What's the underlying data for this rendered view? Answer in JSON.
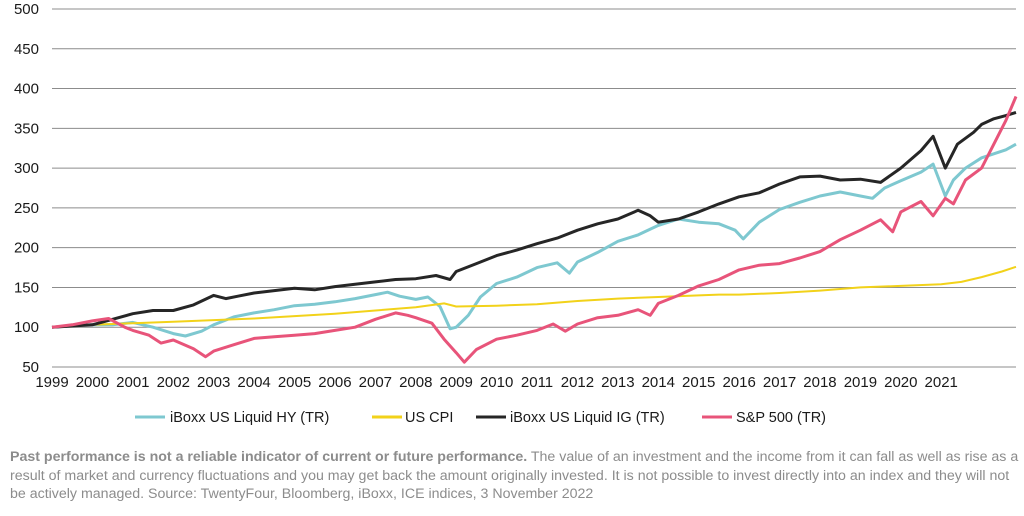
{
  "chart_data": {
    "type": "line",
    "xlim": [
      1999,
      2022.85
    ],
    "ylim": [
      50,
      500
    ],
    "yticks": [
      50,
      100,
      150,
      200,
      250,
      300,
      350,
      400,
      450,
      500
    ],
    "xticks": [
      "1999",
      "2000",
      "2001",
      "2002",
      "2003",
      "2004",
      "2005",
      "2006",
      "2007",
      "2008",
      "2009",
      "2010",
      "2011",
      "2012",
      "2013",
      "2014",
      "2015",
      "2016",
      "2017",
      "2018",
      "2019",
      "2020",
      "2021"
    ],
    "grid": "horizontal",
    "legend_position": "bottom",
    "colors": {
      "hy": "#7ec8d0",
      "cpi": "#f2d21a",
      "ig": "#262626",
      "sp": "#e8547a",
      "grid": "#8c8c8c"
    },
    "series": [
      {
        "name": "iBoxx US Liquid HY (TR)",
        "key": "hy",
        "points": [
          [
            1999,
            100
          ],
          [
            1999.5,
            102
          ],
          [
            2000,
            103
          ],
          [
            2000.5,
            103
          ],
          [
            2001,
            106
          ],
          [
            2001.5,
            100
          ],
          [
            2002,
            92
          ],
          [
            2002.3,
            89
          ],
          [
            2002.7,
            95
          ],
          [
            2003,
            103
          ],
          [
            2003.5,
            113
          ],
          [
            2004,
            118
          ],
          [
            2004.5,
            122
          ],
          [
            2005,
            127
          ],
          [
            2005.5,
            129
          ],
          [
            2006,
            132
          ],
          [
            2006.5,
            136
          ],
          [
            2007,
            141
          ],
          [
            2007.3,
            144
          ],
          [
            2007.6,
            139
          ],
          [
            2008,
            135
          ],
          [
            2008.3,
            138
          ],
          [
            2008.6,
            126
          ],
          [
            2008.85,
            98
          ],
          [
            2009,
            100
          ],
          [
            2009.3,
            115
          ],
          [
            2009.6,
            138
          ],
          [
            2010,
            155
          ],
          [
            2010.5,
            163
          ],
          [
            2011,
            175
          ],
          [
            2011.5,
            181
          ],
          [
            2011.8,
            168
          ],
          [
            2012,
            182
          ],
          [
            2012.5,
            194
          ],
          [
            2013,
            208
          ],
          [
            2013.5,
            216
          ],
          [
            2014,
            228
          ],
          [
            2014.5,
            236
          ],
          [
            2015,
            232
          ],
          [
            2015.5,
            230
          ],
          [
            2015.9,
            222
          ],
          [
            2016.1,
            211
          ],
          [
            2016.5,
            232
          ],
          [
            2017,
            248
          ],
          [
            2017.5,
            257
          ],
          [
            2018,
            265
          ],
          [
            2018.5,
            270
          ],
          [
            2019,
            265
          ],
          [
            2019.3,
            262
          ],
          [
            2019.6,
            275
          ],
          [
            2020,
            284
          ],
          [
            2020.5,
            295
          ],
          [
            2020.8,
            305
          ],
          [
            2021.1,
            265
          ],
          [
            2021.3,
            285
          ],
          [
            2021.6,
            300
          ],
          [
            2022,
            313
          ],
          [
            2022.3,
            318
          ],
          [
            2022.6,
            323
          ],
          [
            2022.85,
            330
          ]
        ]
      },
      {
        "name": "US CPI",
        "key": "cpi",
        "points": [
          [
            1999,
            100
          ],
          [
            2000,
            103
          ],
          [
            2001,
            105
          ],
          [
            2002,
            107
          ],
          [
            2003,
            109
          ],
          [
            2004,
            111
          ],
          [
            2005,
            114
          ],
          [
            2006,
            117
          ],
          [
            2007,
            121
          ],
          [
            2008,
            125
          ],
          [
            2008.7,
            130
          ],
          [
            2009,
            126
          ],
          [
            2010,
            127
          ],
          [
            2011,
            129
          ],
          [
            2012,
            133
          ],
          [
            2013,
            136
          ],
          [
            2014,
            138
          ],
          [
            2015,
            140
          ],
          [
            2015.5,
            141
          ],
          [
            2016,
            141
          ],
          [
            2017,
            143
          ],
          [
            2018,
            146
          ],
          [
            2019,
            150
          ],
          [
            2020,
            152
          ],
          [
            2021,
            154
          ],
          [
            2021.5,
            157
          ],
          [
            2022,
            163
          ],
          [
            2022.5,
            170
          ],
          [
            2022.85,
            176
          ]
        ]
      },
      {
        "name": "iBoxx US Liquid IG (TR)",
        "key": "ig",
        "points": [
          [
            1999,
            100
          ],
          [
            2000,
            103
          ],
          [
            2000.5,
            110
          ],
          [
            2001,
            117
          ],
          [
            2001.5,
            121
          ],
          [
            2002,
            121
          ],
          [
            2002.5,
            128
          ],
          [
            2003,
            140
          ],
          [
            2003.3,
            136
          ],
          [
            2003.6,
            139
          ],
          [
            2004,
            143
          ],
          [
            2004.5,
            146
          ],
          [
            2005,
            149
          ],
          [
            2005.5,
            147
          ],
          [
            2006,
            151
          ],
          [
            2006.5,
            154
          ],
          [
            2007,
            157
          ],
          [
            2007.5,
            160
          ],
          [
            2008,
            161
          ],
          [
            2008.5,
            165
          ],
          [
            2008.85,
            160
          ],
          [
            2009,
            170
          ],
          [
            2009.5,
            180
          ],
          [
            2010,
            190
          ],
          [
            2010.5,
            197
          ],
          [
            2011,
            205
          ],
          [
            2011.5,
            212
          ],
          [
            2012,
            222
          ],
          [
            2012.5,
            230
          ],
          [
            2013,
            236
          ],
          [
            2013.5,
            247
          ],
          [
            2013.8,
            240
          ],
          [
            2014,
            232
          ],
          [
            2014.5,
            236
          ],
          [
            2015,
            245
          ],
          [
            2015.5,
            255
          ],
          [
            2016,
            264
          ],
          [
            2016.5,
            269
          ],
          [
            2017,
            280
          ],
          [
            2017.5,
            289
          ],
          [
            2018,
            290
          ],
          [
            2018.5,
            285
          ],
          [
            2019,
            286
          ],
          [
            2019.5,
            282
          ],
          [
            2020,
            300
          ],
          [
            2020.5,
            322
          ],
          [
            2020.8,
            340
          ],
          [
            2021.1,
            300
          ],
          [
            2021.4,
            330
          ],
          [
            2021.8,
            345
          ],
          [
            2022,
            355
          ],
          [
            2022.3,
            362
          ],
          [
            2022.6,
            366
          ],
          [
            2022.85,
            370
          ]
        ]
      },
      {
        "name": "S&P 500 (TR)",
        "key": "sp",
        "points": [
          [
            1999,
            100
          ],
          [
            1999.5,
            103
          ],
          [
            2000,
            108
          ],
          [
            2000.4,
            111
          ],
          [
            2000.8,
            100
          ],
          [
            2001,
            96
          ],
          [
            2001.4,
            90
          ],
          [
            2001.7,
            80
          ],
          [
            2002,
            84
          ],
          [
            2002.5,
            73
          ],
          [
            2002.8,
            63
          ],
          [
            2003,
            70
          ],
          [
            2003.5,
            78
          ],
          [
            2004,
            86
          ],
          [
            2004.5,
            88
          ],
          [
            2005,
            90
          ],
          [
            2005.5,
            92
          ],
          [
            2006,
            96
          ],
          [
            2006.5,
            100
          ],
          [
            2007,
            110
          ],
          [
            2007.5,
            118
          ],
          [
            2007.8,
            115
          ],
          [
            2008,
            112
          ],
          [
            2008.4,
            105
          ],
          [
            2008.7,
            85
          ],
          [
            2009,
            68
          ],
          [
            2009.2,
            56
          ],
          [
            2009.5,
            72
          ],
          [
            2010,
            85
          ],
          [
            2010.5,
            90
          ],
          [
            2011,
            96
          ],
          [
            2011.4,
            104
          ],
          [
            2011.7,
            95
          ],
          [
            2012,
            104
          ],
          [
            2012.5,
            112
          ],
          [
            2013,
            115
          ],
          [
            2013.5,
            122
          ],
          [
            2013.8,
            115
          ],
          [
            2014,
            130
          ],
          [
            2014.5,
            140
          ],
          [
            2015,
            152
          ],
          [
            2015.5,
            160
          ],
          [
            2016,
            172
          ],
          [
            2016.5,
            178
          ],
          [
            2017,
            180
          ],
          [
            2017.5,
            187
          ],
          [
            2018,
            195
          ],
          [
            2018.5,
            210
          ],
          [
            2019,
            222
          ],
          [
            2019.5,
            235
          ],
          [
            2019.8,
            220
          ],
          [
            2020,
            245
          ],
          [
            2020.5,
            258
          ],
          [
            2020.8,
            240
          ],
          [
            2021.1,
            262
          ],
          [
            2021.3,
            255
          ],
          [
            2021.6,
            285
          ],
          [
            2022,
            300
          ],
          [
            2022.3,
            330
          ],
          [
            2022.6,
            360
          ],
          [
            2022.85,
            390
          ]
        ]
      }
    ]
  },
  "legend": {
    "hy": "iBoxx US Liquid HY (TR)",
    "cpi": "US CPI",
    "ig": "iBoxx US Liquid IG (TR)",
    "sp": "S&P 500 (TR)"
  },
  "disclaimer": {
    "bold": "Past performance is not a reliable indicator of current or future performance.",
    "text": " The value of an investment and the income from it can fall as well as rise as a result of market and currency fluctuations and you may get back the amount originally invested. It is not possible to invest directly into an index and they will not be actively managed. Source: TwentyFour, Bloomberg, iBoxx, ICE indices, 3 November 2022"
  }
}
